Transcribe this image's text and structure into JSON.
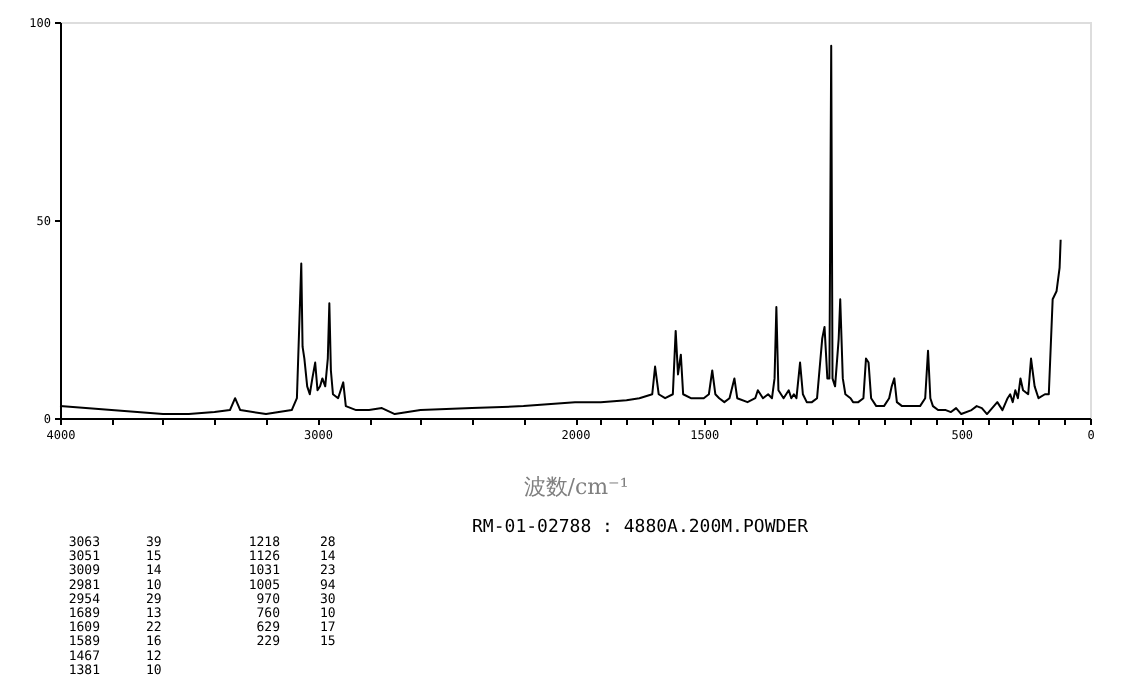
{
  "chart_data": {
    "type": "line",
    "xlabel": "波数/cm⁻¹",
    "annotations": [
      "RM-01-02788 : 4880A.200M.POWDER",
      "3063 39",
      "3051 15",
      "3009 14",
      "2981 10",
      "2954 29",
      "1689 13",
      "1609 22",
      "1589 16",
      "1467 12",
      "1381 10",
      "1218 28",
      "1126 14",
      "1031 23",
      "1005 94",
      "970 30",
      "760 10",
      "629 17",
      "229 15"
    ],
    "xlim": [
      4000,
      0
    ],
    "xticks": [
      4000,
      {
        "value": 3800,
        "label": null
      },
      {
        "value": 3600,
        "label": null
      },
      {
        "value": 3400,
        "label": null
      },
      {
        "value": 3200,
        "label": null
      },
      3000,
      {
        "value": 2800,
        "label": null
      },
      {
        "value": 2600,
        "label": null
      },
      {
        "value": 2400,
        "label": null
      },
      {
        "value": 2200,
        "label": null
      },
      2000,
      {
        "value": 1900,
        "label": null
      },
      {
        "value": 1800,
        "label": null
      },
      {
        "value": 1700,
        "label": null
      },
      {
        "value": 1600,
        "label": null
      },
      1500,
      {
        "value": 1400,
        "label": null
      },
      {
        "value": 1300,
        "label": null
      },
      {
        "value": 1200,
        "label": null
      },
      {
        "value": 1100,
        "label": null
      },
      {
        "value": 1000,
        "label": null
      },
      {
        "value": 900,
        "label": null
      },
      {
        "value": 800,
        "label": null
      },
      {
        "value": 700,
        "label": null
      },
      {
        "value": 600,
        "label": null
      },
      500,
      {
        "value": 400,
        "label": null
      },
      {
        "value": 300,
        "label": null
      },
      {
        "value": 200,
        "label": null
      },
      {
        "value": 100,
        "label": null
      },
      0
    ],
    "ylim": [
      0,
      100
    ],
    "yticks": [
      0,
      50,
      100
    ],
    "grid": false,
    "marker": "none",
    "line_style": "solid",
    "x": [
      4000,
      3900,
      3800,
      3700,
      3600,
      3500,
      3400,
      3340,
      3320,
      3300,
      3200,
      3100,
      3080,
      3070,
      3063,
      3058,
      3051,
      3040,
      3030,
      3020,
      3009,
      3000,
      2990,
      2981,
      2970,
      2960,
      2954,
      2948,
      2940,
      2920,
      2900,
      2890,
      2850,
      2800,
      2750,
      2700,
      2600,
      2400,
      2200,
      2000,
      1900,
      1800,
      1750,
      1700,
      1689,
      1675,
      1650,
      1620,
      1609,
      1600,
      1589,
      1580,
      1550,
      1500,
      1480,
      1467,
      1455,
      1440,
      1420,
      1400,
      1381,
      1370,
      1330,
      1300,
      1290,
      1270,
      1250,
      1235,
      1225,
      1218,
      1210,
      1190,
      1170,
      1160,
      1150,
      1140,
      1126,
      1115,
      1100,
      1080,
      1060,
      1040,
      1031,
      1020,
      1012,
      1005,
      1000,
      990,
      976,
      970,
      960,
      950,
      930,
      920,
      900,
      880,
      870,
      860,
      850,
      830,
      800,
      780,
      770,
      760,
      750,
      730,
      700,
      660,
      640,
      629,
      620,
      610,
      590,
      560,
      540,
      520,
      500,
      460,
      440,
      420,
      400,
      380,
      360,
      340,
      320,
      310,
      300,
      290,
      280,
      270,
      260,
      240,
      229,
      215,
      200,
      175,
      160,
      145,
      130,
      118,
      114
    ],
    "series": [
      {
        "color": "#000000",
        "values": [
          3,
          2.5,
          2,
          1.5,
          1,
          1,
          1.5,
          2,
          5,
          2,
          1,
          2,
          5,
          25,
          39,
          18,
          15,
          8,
          6,
          10,
          14,
          7,
          8,
          10,
          8,
          15,
          29,
          12,
          6,
          5,
          9,
          3,
          2,
          2,
          2.5,
          1,
          2,
          2.5,
          3,
          4,
          4,
          4.5,
          5,
          6,
          13,
          6,
          5,
          6,
          22,
          11,
          16,
          6,
          5,
          5,
          6,
          12,
          6,
          5,
          4,
          5,
          10,
          5,
          4,
          5,
          7,
          5,
          6,
          5,
          10,
          28,
          7,
          5,
          7,
          5,
          6,
          5,
          14,
          6,
          4,
          4,
          5,
          20,
          23,
          10,
          10,
          94,
          10,
          8,
          20,
          30,
          10,
          6,
          5,
          4,
          4,
          5,
          15,
          14,
          5,
          3,
          3,
          5,
          8,
          10,
          4,
          3,
          3,
          3,
          5,
          17,
          5,
          3,
          2,
          2,
          1.5,
          2.5,
          1,
          2,
          3,
          2.5,
          1,
          2.5,
          4,
          2,
          5,
          6,
          4,
          7,
          5,
          10,
          7,
          6,
          15,
          8,
          5,
          6,
          6,
          30,
          32,
          38,
          45
        ]
      }
    ]
  }
}
